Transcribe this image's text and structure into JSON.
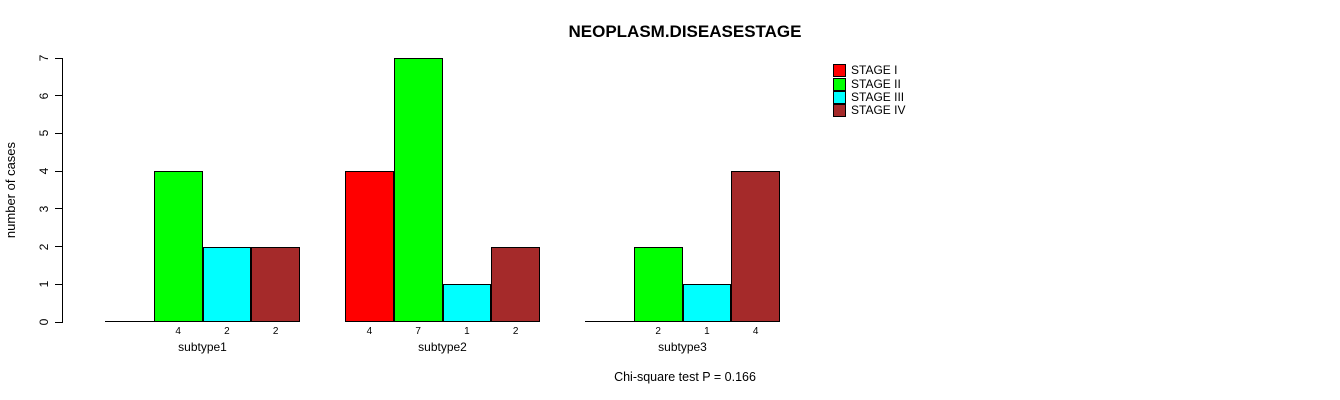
{
  "page": {
    "background": "#FFFFFF",
    "text_color": "#000000",
    "axis_color": "#000000"
  },
  "chart_data": {
    "type": "bar",
    "title": "NEOPLASM.DISEASESTAGE",
    "ylabel": "number of cases",
    "xlabel": "",
    "categories": [
      "subtype1",
      "subtype2",
      "subtype3"
    ],
    "series": [
      {
        "name": "STAGE I",
        "color": "#FF0000",
        "values": [
          0,
          4,
          0
        ]
      },
      {
        "name": "STAGE II",
        "color": "#00FF00",
        "values": [
          4,
          7,
          2
        ]
      },
      {
        "name": "STAGE III",
        "color": "#00FFFF",
        "values": [
          2,
          1,
          1
        ]
      },
      {
        "name": "STAGE IV",
        "color": "#A52A2A",
        "values": [
          2,
          2,
          4
        ]
      }
    ],
    "ylim": [
      0,
      7
    ],
    "yticks": [
      "0",
      "1",
      "2",
      "3",
      "4",
      "5",
      "6",
      "7"
    ],
    "bar_value_labels_shown": true,
    "zero_values_unlabeled": true,
    "grid": false,
    "legend_position": "top-right-inside",
    "annotation": "Chi-square test P = 0.166"
  }
}
